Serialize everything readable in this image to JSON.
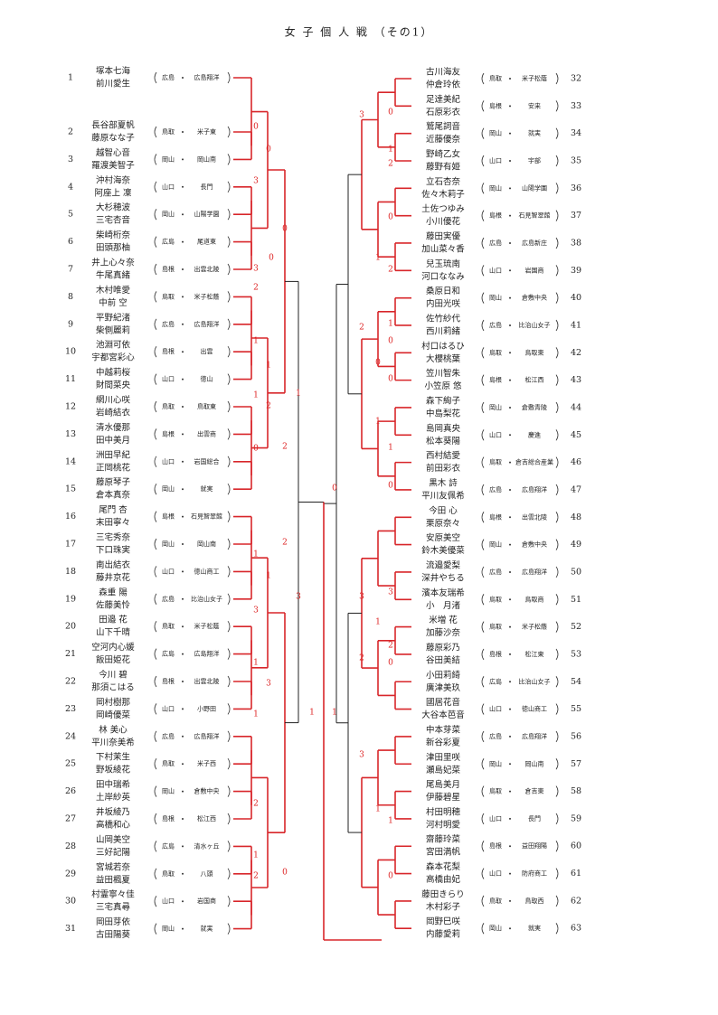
{
  "title": "女 子 個 人 戦 （その1）",
  "left": [
    {
      "no": "1",
      "names": [
        "塚本七海",
        "前川愛生"
      ],
      "pref": "広島",
      "school": "広島翔洋"
    },
    {
      "no": "2",
      "names": [
        "長谷部夏帆",
        "藤原なな子"
      ],
      "pref": "鳥取",
      "school": "米子東"
    },
    {
      "no": "3",
      "names": [
        "越智心音",
        "羅渡美智子"
      ],
      "pref": "岡山",
      "school": "岡山南"
    },
    {
      "no": "4",
      "names": [
        "沖村海奈",
        "阿座上 凜"
      ],
      "pref": "山口",
      "school": "長門"
    },
    {
      "no": "5",
      "names": [
        "大杉穂波",
        "三宅杏音"
      ],
      "pref": "岡山",
      "school": "山陽学園"
    },
    {
      "no": "6",
      "names": [
        "柴崎桁奈",
        "田頭那柚"
      ],
      "pref": "広島",
      "school": "尾道東"
    },
    {
      "no": "7",
      "names": [
        "井上心々奈",
        "牛尾真緒"
      ],
      "pref": "島根",
      "school": "出雲北陵"
    },
    {
      "no": "8",
      "names": [
        "木村唯愛",
        "中前 空"
      ],
      "pref": "鳥取",
      "school": "米子松蔭"
    },
    {
      "no": "9",
      "names": [
        "平野紀渚",
        "柴側麗莉"
      ],
      "pref": "広島",
      "school": "広島翔洋"
    },
    {
      "no": "10",
      "names": [
        "池淵可依",
        "宇都宮彩心"
      ],
      "pref": "島根",
      "school": "出雲"
    },
    {
      "no": "11",
      "names": [
        "中越莉桜",
        "財間菜央"
      ],
      "pref": "山口",
      "school": "徳山"
    },
    {
      "no": "12",
      "names": [
        "網川心咲",
        "岩崎結衣"
      ],
      "pref": "鳥取",
      "school": "鳥取東"
    },
    {
      "no": "13",
      "names": [
        "清水優那",
        "田中美月"
      ],
      "pref": "島根",
      "school": "出雲商"
    },
    {
      "no": "14",
      "names": [
        "洲田早紀",
        "正岡桃花"
      ],
      "pref": "山口",
      "school": "岩国総合"
    },
    {
      "no": "15",
      "names": [
        "藤原琴子",
        "倉本真奈"
      ],
      "pref": "岡山",
      "school": "就実"
    },
    {
      "no": "16",
      "names": [
        "尾門 杏",
        "末田寧々"
      ],
      "pref": "島根",
      "school": "石見智翠館"
    },
    {
      "no": "17",
      "names": [
        "三宅秀奈",
        "下口珠実"
      ],
      "pref": "岡山",
      "school": "岡山南"
    },
    {
      "no": "18",
      "names": [
        "南出結衣",
        "藤井京花"
      ],
      "pref": "山口",
      "school": "徳山商工"
    },
    {
      "no": "19",
      "names": [
        "森重 陽",
        "佐藤美怜"
      ],
      "pref": "広島",
      "school": "比治山女子"
    },
    {
      "no": "20",
      "names": [
        "田邉 花",
        "山下千晴"
      ],
      "pref": "鳥取",
      "school": "米子松蔭"
    },
    {
      "no": "21",
      "names": [
        "空河内心媛",
        "飯田姫花"
      ],
      "pref": "広島",
      "school": "広島翔洋"
    },
    {
      "no": "22",
      "names": [
        "今川 碧",
        "那須こはる"
      ],
      "pref": "島根",
      "school": "出雲北陵"
    },
    {
      "no": "23",
      "names": [
        "岡村樹那",
        "岡崎優菜"
      ],
      "pref": "山口",
      "school": "小野田"
    },
    {
      "no": "24",
      "names": [
        "林 美心",
        "平川奈美希"
      ],
      "pref": "広島",
      "school": "広島翔洋"
    },
    {
      "no": "25",
      "names": [
        "下村茉生",
        "野坂綾花"
      ],
      "pref": "鳥取",
      "school": "米子西"
    },
    {
      "no": "26",
      "names": [
        "田中瑞希",
        "土岸紗英"
      ],
      "pref": "岡山",
      "school": "倉敷中央"
    },
    {
      "no": "27",
      "names": [
        "井坂綾乃",
        "高橋和心"
      ],
      "pref": "島根",
      "school": "松江西"
    },
    {
      "no": "28",
      "names": [
        "山岡美空",
        "三好記陽"
      ],
      "pref": "広島",
      "school": "清水ヶ丘"
    },
    {
      "no": "29",
      "names": [
        "宮城若奈",
        "益田楓夏"
      ],
      "pref": "鳥取",
      "school": "八頭"
    },
    {
      "no": "30",
      "names": [
        "村霊寧々佳",
        "三宅真尋"
      ],
      "pref": "山口",
      "school": "岩国商"
    },
    {
      "no": "31",
      "names": [
        "岡田芽依",
        "古田陽葵"
      ],
      "pref": "岡山",
      "school": "就実"
    }
  ],
  "right": [
    {
      "no": "32",
      "names": [
        "古川海友",
        "仲倉玲依"
      ],
      "pref": "鳥取",
      "school": "米子松蔭"
    },
    {
      "no": "33",
      "names": [
        "足達美紀",
        "石原彩衣"
      ],
      "pref": "島根",
      "school": "安来"
    },
    {
      "no": "34",
      "names": [
        "鷲尾詞音",
        "近藤優奈"
      ],
      "pref": "岡山",
      "school": "就実"
    },
    {
      "no": "35",
      "names": [
        "野崎乙女",
        "藤野有姫"
      ],
      "pref": "山口",
      "school": "宇部"
    },
    {
      "no": "36",
      "names": [
        "立石杏奈",
        "佐々木莉子"
      ],
      "pref": "岡山",
      "school": "山陽学園"
    },
    {
      "no": "37",
      "names": [
        "土佐つゆみ",
        "小川優花"
      ],
      "pref": "島根",
      "school": "石見智翠館"
    },
    {
      "no": "38",
      "names": [
        "藤田実優",
        "加山菜々香"
      ],
      "pref": "広島",
      "school": "広島新庄"
    },
    {
      "no": "39",
      "names": [
        "兒玉琉南",
        "河口ななみ"
      ],
      "pref": "山口",
      "school": "岩国商"
    },
    {
      "no": "40",
      "names": [
        "桑原日和",
        "内田光咲"
      ],
      "pref": "岡山",
      "school": "倉敷中央"
    },
    {
      "no": "41",
      "names": [
        "佐竹紗代",
        "西川莉緒"
      ],
      "pref": "広島",
      "school": "比治山女子"
    },
    {
      "no": "42",
      "names": [
        "村口はるひ",
        "大櫻桃葉"
      ],
      "pref": "鳥取",
      "school": "鳥取東"
    },
    {
      "no": "43",
      "names": [
        "笠川智朱",
        "小笠原 悠"
      ],
      "pref": "島根",
      "school": "松江西"
    },
    {
      "no": "44",
      "names": [
        "森下絢子",
        "中島梨花"
      ],
      "pref": "岡山",
      "school": "倉敷青陵"
    },
    {
      "no": "45",
      "names": [
        "島岡真央",
        "松本葵陽"
      ],
      "pref": "山口",
      "school": "慶進"
    },
    {
      "no": "46",
      "names": [
        "西村結愛",
        "前田彩衣"
      ],
      "pref": "鳥取",
      "school": "倉吉総合産業"
    },
    {
      "no": "47",
      "names": [
        "黒木 詩",
        "平川友佩希"
      ],
      "pref": "広島",
      "school": "広島翔洋"
    },
    {
      "no": "48",
      "names": [
        "今田 心",
        "栗原奈々"
      ],
      "pref": "島根",
      "school": "出雲北陵"
    },
    {
      "no": "49",
      "names": [
        "安原美空",
        "鈴木美優菜"
      ],
      "pref": "岡山",
      "school": "倉敷中央"
    },
    {
      "no": "50",
      "names": [
        "流邉愛梨",
        "深井やちる"
      ],
      "pref": "広島",
      "school": "広島翔洋"
    },
    {
      "no": "51",
      "names": [
        "濱本友瑞希",
        "小　月渚"
      ],
      "pref": "鳥取",
      "school": "鳥取商"
    },
    {
      "no": "52",
      "names": [
        "米増 花",
        "加藤沙奈"
      ],
      "pref": "鳥取",
      "school": "米子松蔭"
    },
    {
      "no": "53",
      "names": [
        "藤原彩乃",
        "谷田美結"
      ],
      "pref": "島根",
      "school": "松江東"
    },
    {
      "no": "54",
      "names": [
        "小田莉綺",
        "廣津美玖"
      ],
      "pref": "広島",
      "school": "比治山女子"
    },
    {
      "no": "55",
      "names": [
        "國居花音",
        "大谷本芭音"
      ],
      "pref": "山口",
      "school": "徳山商工"
    },
    {
      "no": "56",
      "names": [
        "中本芽菜",
        "新谷彩夏"
      ],
      "pref": "広島",
      "school": "広島翔洋"
    },
    {
      "no": "57",
      "names": [
        "津田里咲",
        "瀬島妃菜"
      ],
      "pref": "岡山",
      "school": "岡山南"
    },
    {
      "no": "58",
      "names": [
        "尾島美月",
        "伊藤碧星"
      ],
      "pref": "鳥取",
      "school": "倉吉東"
    },
    {
      "no": "59",
      "names": [
        "村田明穂",
        "河村明愛"
      ],
      "pref": "山口",
      "school": "長門"
    },
    {
      "no": "60",
      "names": [
        "齋藤玲菜",
        "宮田満帆"
      ],
      "pref": "島根",
      "school": "益田翔陽"
    },
    {
      "no": "61",
      "names": [
        "森本花梨",
        "高橋由妃"
      ],
      "pref": "山口",
      "school": "防府商工"
    },
    {
      "no": "62",
      "names": [
        "藤田きらり",
        "木村彩子"
      ],
      "pref": "鳥取",
      "school": "鳥取西"
    },
    {
      "no": "63",
      "names": [
        "岡野巳咲",
        "内藤愛莉"
      ],
      "pref": "岡山",
      "school": "就実"
    }
  ],
  "scores_left": [
    0,
    0,
    3,
    0,
    0,
    3,
    2,
    1,
    1,
    1,
    1,
    2,
    0,
    2,
    0,
    2,
    1,
    1,
    3,
    3,
    1,
    3,
    1,
    1,
    2,
    1,
    2,
    0
  ],
  "scores_right": [
    3,
    0,
    1,
    2,
    0,
    1,
    2,
    2,
    1,
    0,
    0,
    0,
    1,
    1,
    0,
    3,
    3,
    1,
    2,
    2,
    0,
    1,
    3,
    1,
    1,
    0
  ]
}
